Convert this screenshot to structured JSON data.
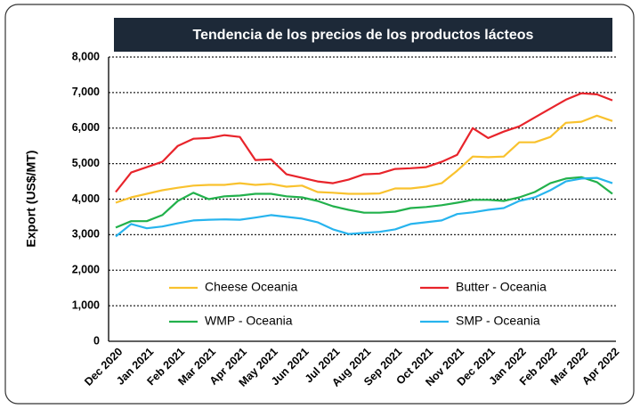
{
  "chart_data": {
    "type": "line",
    "title": "Tendencia de los precios de los productos lácteos",
    "y_label": "Export (US$/MT)",
    "categories": [
      "Dec 2020",
      null,
      "Jan 2021",
      null,
      "Feb 2021",
      null,
      "Mar 2021",
      null,
      "Apr 2021",
      null,
      "May 2021",
      null,
      "Jun 2021",
      null,
      "Jul 2021",
      null,
      "Aug 2021",
      null,
      "Sep 2021",
      null,
      "Oct 2021",
      null,
      "Nov 2021",
      null,
      "Dec 2021",
      null,
      "Jan 2022",
      null,
      "Feb 2022",
      null,
      "Mar 2022",
      null,
      "Apr 2022"
    ],
    "series": [
      {
        "name": "Cheese Oceania",
        "color": "#f9c22e",
        "values": [
          3900,
          4050,
          4150,
          4250,
          4320,
          4380,
          4400,
          4400,
          4450,
          4400,
          4430,
          4350,
          4380,
          4200,
          4180,
          4150,
          4150,
          4160,
          4300,
          4300,
          4350,
          4450,
          4800,
          5200,
          5180,
          5200,
          5600,
          5600,
          5750,
          6150,
          6180,
          6350,
          6200
        ]
      },
      {
        "name": "Butter - Oceania",
        "color": "#e8242b",
        "values": [
          4200,
          4750,
          4900,
          5050,
          5500,
          5700,
          5720,
          5800,
          5750,
          5100,
          5120,
          4700,
          4600,
          4500,
          4450,
          4550,
          4700,
          4720,
          4850,
          4870,
          4900,
          5050,
          5250,
          6000,
          5720,
          5900,
          6050,
          6300,
          6550,
          6800,
          6980,
          6950,
          6780
        ]
      },
      {
        "name": "WMP - Oceania",
        "color": "#22b14c",
        "values": [
          3200,
          3380,
          3380,
          3550,
          3950,
          4180,
          4000,
          4080,
          4100,
          4150,
          4150,
          4080,
          4050,
          3950,
          3800,
          3700,
          3620,
          3620,
          3650,
          3750,
          3780,
          3830,
          3900,
          3980,
          3980,
          3950,
          4050,
          4200,
          4450,
          4580,
          4620,
          4480,
          4150
        ]
      },
      {
        "name": "SMP - Oceania",
        "color": "#27b4ee",
        "values": [
          2950,
          3300,
          3180,
          3230,
          3320,
          3400,
          3420,
          3430,
          3420,
          3480,
          3550,
          3500,
          3450,
          3350,
          3150,
          3020,
          3050,
          3080,
          3150,
          3300,
          3350,
          3400,
          3580,
          3630,
          3700,
          3750,
          3950,
          4050,
          4250,
          4500,
          4580,
          4600,
          4450
        ]
      }
    ],
    "ylim": [
      0,
      8000
    ],
    "yticks": [
      0,
      {
        "value": 1000,
        "label": "1,000"
      },
      {
        "value": 2000,
        "label": "2,000"
      },
      {
        "value": 3000,
        "label": "3,000"
      },
      {
        "value": 4000,
        "label": "4,000"
      },
      {
        "value": 5000,
        "label": "5,000"
      },
      {
        "value": 6000,
        "label": "6,000"
      },
      {
        "value": 7000,
        "label": "7,000"
      },
      {
        "value": 8000,
        "label": "8,000"
      }
    ],
    "grid": true
  }
}
